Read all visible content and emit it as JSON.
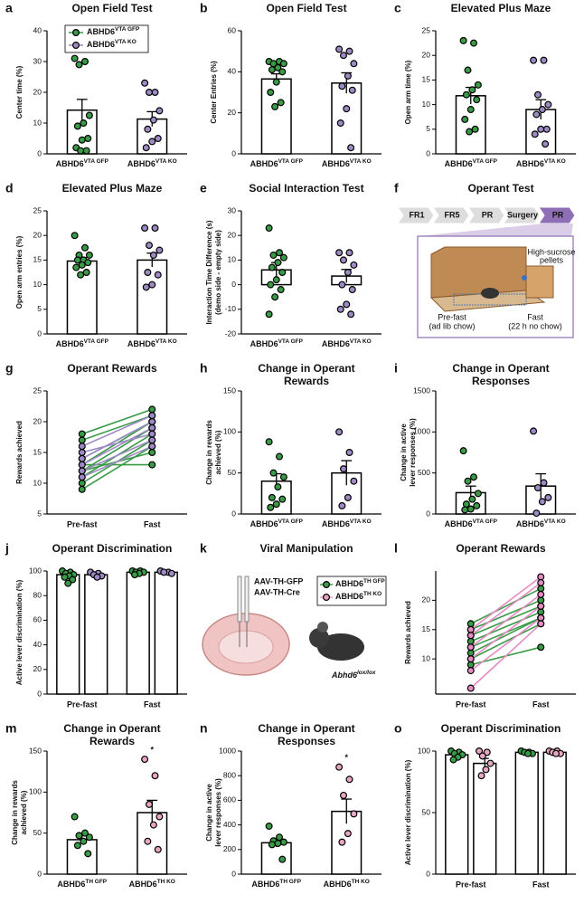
{
  "chart_data": [
    {
      "type": "bar",
      "label": "a",
      "title": "Open Field Test",
      "ylabel": [
        "Center time (%)"
      ],
      "ylim": [
        0,
        40
      ],
      "yticks": [
        0,
        10,
        20,
        30,
        40
      ],
      "categories": [
        {
          "text": "ABHD6",
          "sup": "VTA GFP"
        },
        {
          "text": "ABHD6",
          "sup": "VTA KO"
        }
      ],
      "values": [
        14.2,
        11.3
      ],
      "errors": [
        3.5,
        2.4
      ],
      "colors": [
        "#3a9b47",
        "#9d8ac4"
      ],
      "points": [
        [
          31,
          30,
          29,
          12.5,
          10,
          9,
          5,
          4.5,
          2,
          1,
          1
        ],
        [
          23,
          20,
          20,
          14,
          11,
          8,
          5,
          4,
          2
        ]
      ],
      "legend": [
        {
          "text": "ABHD6",
          "sup": "VTA GFP",
          "color": "#3a9b47"
        },
        {
          "text": "ABHD6",
          "sup": "VTA KO",
          "color": "#9d8ac4"
        }
      ]
    },
    {
      "type": "bar",
      "label": "b",
      "title": "Open Field Test",
      "ylabel": [
        "Center Entries (%)"
      ],
      "ylim": [
        0,
        60
      ],
      "yticks": [
        0,
        20,
        40,
        60
      ],
      "categories": [
        {
          "text": "ABHD6",
          "sup": "VTA GFP"
        },
        {
          "text": "ABHD6",
          "sup": "VTA KO"
        }
      ],
      "values": [
        36.5,
        34.5
      ],
      "errors": [
        2.5,
        5
      ],
      "colors": [
        "#3a9b47",
        "#9d8ac4"
      ],
      "points": [
        [
          45,
          45,
          44,
          44,
          42,
          41,
          40,
          35,
          30,
          25,
          23
        ],
        [
          51,
          50,
          48,
          44,
          38,
          33,
          31,
          22,
          15,
          3
        ]
      ]
    },
    {
      "type": "bar",
      "label": "c",
      "title": "Elevated Plus Maze",
      "ylabel": [
        "Open arm time (%)"
      ],
      "ylim": [
        0,
        25
      ],
      "yticks": [
        0,
        5,
        10,
        15,
        20,
        25
      ],
      "categories": [
        {
          "text": "ABHD6",
          "sup": "VTA GFP"
        },
        {
          "text": "ABHD6",
          "sup": "VTA KO"
        }
      ],
      "values": [
        11.8,
        9
      ],
      "errors": [
        1.7,
        2
      ],
      "colors": [
        "#3a9b47",
        "#9d8ac4"
      ],
      "points": [
        [
          23,
          22.5,
          17,
          14,
          13,
          12,
          11,
          9,
          7,
          5,
          4.5
        ],
        [
          19,
          19,
          12,
          10,
          9,
          8,
          5,
          5,
          4,
          2
        ]
      ]
    },
    {
      "type": "bar",
      "label": "d",
      "title": "Elevated Plus Maze",
      "ylabel": [
        "Open arm entries (%)"
      ],
      "ylim": [
        0,
        25
      ],
      "yticks": [
        0,
        5,
        10,
        15,
        20,
        25
      ],
      "categories": [
        {
          "text": "ABHD6",
          "sup": "VTA GFP"
        },
        {
          "text": "ABHD6",
          "sup": "VTA KO"
        }
      ],
      "values": [
        14.8,
        15
      ],
      "errors": [
        0.7,
        1.4
      ],
      "colors": [
        "#3a9b47",
        "#9d8ac4"
      ],
      "points": [
        [
          20,
          17.5,
          16,
          16,
          15,
          15,
          14.5,
          14,
          13.5,
          12.5,
          12
        ],
        [
          21.5,
          21.5,
          18,
          17,
          16,
          12.5,
          12,
          10,
          9.5
        ]
      ]
    },
    {
      "type": "bar",
      "label": "e",
      "title": "Social Interaction Test",
      "ylabel": [
        "Interaction Time Difference (s)",
        "(demo side - empty side)"
      ],
      "ylim": [
        -20,
        30
      ],
      "yticks": [
        -20,
        -10,
        0,
        10,
        20,
        30
      ],
      "categories": [
        {
          "text": "ABHD6",
          "sup": "VTA GFP"
        },
        {
          "text": "ABHD6",
          "sup": "VTA KO"
        }
      ],
      "values": [
        6,
        3.5
      ],
      "errors": [
        3,
        2.7
      ],
      "colors": [
        "#3a9b47",
        "#9d8ac4"
      ],
      "points": [
        [
          23,
          13,
          12,
          11,
          9,
          7,
          5,
          2,
          0,
          -2,
          -5,
          -12
        ],
        [
          13,
          13,
          10,
          8,
          5,
          0,
          -2,
          -8,
          -10,
          -12
        ]
      ]
    },
    {
      "type": "diagram",
      "label": "f",
      "title": "Operant Test",
      "steps": [
        "FR1",
        "FR5",
        "PR",
        "Surgery",
        "PR"
      ],
      "annotations": [
        "High-sucrose",
        "pellets",
        "Pre-fast",
        "(ad lib chow)",
        "Fast",
        "(22 h no chow)"
      ]
    },
    {
      "type": "paired",
      "label": "g",
      "title": "Operant Rewards",
      "ylabel": [
        "Rewards achieved"
      ],
      "ylim": [
        5,
        25
      ],
      "yticks": [
        5,
        10,
        15,
        20,
        25
      ],
      "categories": [
        "Pre-fast",
        "Fast"
      ],
      "series": [
        {
          "color": "#3a9b47",
          "values": [
            [
              18,
              22
            ],
            [
              17,
              21
            ],
            [
              14,
              20
            ],
            [
              13,
              20
            ],
            [
              12,
              19
            ],
            [
              11,
              18
            ],
            [
              10,
              17
            ],
            [
              9,
              16
            ],
            [
              12,
              15
            ],
            [
              13,
              13
            ]
          ]
        },
        {
          "color": "#9d8ac4",
          "values": [
            [
              16,
              21
            ],
            [
              14,
              20
            ],
            [
              13,
              19
            ],
            [
              12,
              17
            ],
            [
              11,
              16
            ],
            [
              15,
              18
            ]
          ]
        }
      ]
    },
    {
      "type": "bar",
      "label": "h",
      "title": [
        "Change in Operant",
        "Rewards"
      ],
      "ylabel": [
        "Change in rewards",
        "achieved (%)"
      ],
      "ylim": [
        0,
        150
      ],
      "yticks": [
        0,
        50,
        100,
        150
      ],
      "categories": [
        {
          "text": "ABHD6",
          "sup": "VTA GFP"
        },
        {
          "text": "ABHD6",
          "sup": "VTA KO"
        }
      ],
      "values": [
        40,
        50
      ],
      "errors": [
        9,
        15
      ],
      "colors": [
        "#3a9b47",
        "#9d8ac4"
      ],
      "points": [
        [
          88,
          70,
          50,
          45,
          33,
          20,
          18,
          12,
          8
        ],
        [
          100,
          75,
          55,
          40,
          20,
          10
        ]
      ]
    },
    {
      "type": "bar",
      "label": "i",
      "title": [
        "Change in Operant",
        "Responses"
      ],
      "ylabel": [
        "Change in active",
        "lever responses (%)"
      ],
      "ylim": [
        0,
        1500
      ],
      "yticks": [
        0,
        500,
        1000,
        1500
      ],
      "categories": [
        {
          "text": "ABHD6",
          "sup": "VTA GFP"
        },
        {
          "text": "ABHD6",
          "sup": "VTA KO"
        }
      ],
      "values": [
        260,
        340
      ],
      "errors": [
        80,
        150
      ],
      "colors": [
        "#3a9b47",
        "#9d8ac4"
      ],
      "points": [
        [
          770,
          450,
          400,
          250,
          180,
          120,
          100,
          60,
          50
        ],
        [
          1010,
          380,
          320,
          200,
          150,
          10
        ]
      ]
    },
    {
      "type": "grouped_bar",
      "label": "j",
      "title": "Operant Discrimination",
      "ylabel": [
        "Active lever discrimination (%)"
      ],
      "ylim": [
        0,
        100
      ],
      "yticks": [
        0,
        20,
        40,
        60,
        80,
        100
      ],
      "categories": [
        "Pre-fast",
        "Fast"
      ],
      "series": [
        {
          "color": "#3a9b47",
          "values": [
            97,
            99
          ],
          "errors": [
            1.5,
            0.5
          ],
          "points": [
            [
              100,
              99,
              98,
              97,
              96,
              95,
              93,
              90
            ],
            [
              100,
              100,
              99,
              99,
              98,
              97
            ]
          ]
        },
        {
          "color": "#9d8ac4",
          "values": [
            97,
            99
          ],
          "errors": [
            1,
            0.5
          ],
          "points": [
            [
              99,
              98,
              97,
              96,
              95
            ],
            [
              100,
              99,
              99,
              98
            ]
          ]
        }
      ]
    },
    {
      "type": "diagram",
      "label": "k",
      "title": "Viral Manipulation",
      "annotations": [
        "AAV-TH-GFP",
        "AAV-TH-Cre"
      ],
      "annotation_colors": [
        "#2fa84a",
        "#e07ab8"
      ],
      "legend": [
        {
          "text": "ABHD6",
          "sup": "TH GFP",
          "color": "#3a9b47"
        },
        {
          "text": "ABHD6",
          "sup": "TH KO",
          "color": "#e7a6c4"
        }
      ],
      "mouse_label": {
        "text": "Abhd6",
        "sup": "lox/lox"
      }
    },
    {
      "type": "paired",
      "label": "l",
      "title": "Operant Rewards",
      "ylabel": [
        "Rewards achieved"
      ],
      "ylim": [
        4,
        25
      ],
      "yticks": [
        10,
        15,
        20
      ],
      "categories": [
        "Pre-fast",
        "Fast"
      ],
      "series": [
        {
          "color": "#3a9b47",
          "values": [
            [
              16,
              22
            ],
            [
              15,
              20
            ],
            [
              14,
              19
            ],
            [
              13,
              18
            ],
            [
              12,
              17
            ],
            [
              11,
              17
            ],
            [
              10,
              16
            ],
            [
              9,
              12
            ]
          ]
        },
        {
          "color": "#e58bc2",
          "values": [
            [
              15,
              24
            ],
            [
              14,
              23
            ],
            [
              12,
              21
            ],
            [
              10,
              19
            ],
            [
              8,
              17
            ],
            [
              5,
              16
            ]
          ]
        }
      ]
    },
    {
      "type": "bar",
      "label": "m",
      "title": [
        "Change in Operant",
        "Rewards"
      ],
      "ylabel": [
        "Change in rewards",
        "achieved (%)"
      ],
      "ylim": [
        0,
        150
      ],
      "yticks": [
        0,
        50,
        100,
        150
      ],
      "categories": [
        {
          "text": "ABHD6",
          "sup": "TH GFP"
        },
        {
          "text": "ABHD6",
          "sup": "TH KO"
        }
      ],
      "values": [
        42,
        75
      ],
      "errors": [
        5,
        15
      ],
      "colors": [
        "#3a9b47",
        "#e7a6c4"
      ],
      "points": [
        [
          70,
          50,
          47,
          45,
          40,
          35,
          25
        ],
        [
          140,
          120,
          85,
          70,
          60,
          40,
          30
        ]
      ],
      "annotation": "*"
    },
    {
      "type": "bar",
      "label": "n",
      "title": [
        "Change in Operant",
        "Responses"
      ],
      "ylabel": [
        "Change in active",
        "lever responses (%)"
      ],
      "ylim": [
        0,
        1000
      ],
      "yticks": [
        0,
        200,
        400,
        600,
        800,
        1000
      ],
      "categories": [
        {
          "text": "ABHD6",
          "sup": "TH GFP"
        },
        {
          "text": "ABHD6",
          "sup": "TH KO"
        }
      ],
      "values": [
        255,
        510
      ],
      "errors": [
        35,
        100
      ],
      "colors": [
        "#3a9b47",
        "#e7a6c4"
      ],
      "points": [
        [
          390,
          300,
          270,
          260,
          250,
          240,
          120
        ],
        [
          870,
          770,
          640,
          490,
          330,
          260
        ]
      ],
      "annotation": "*"
    },
    {
      "type": "grouped_bar",
      "label": "o",
      "title": "Operant Discrimination",
      "ylabel": [
        "Active lever discrimination (%)"
      ],
      "ylim": [
        0,
        100
      ],
      "yticks": [
        0,
        50,
        100
      ],
      "categories": [
        "Pre-fast",
        "Fast"
      ],
      "series": [
        {
          "color": "#3a9b47",
          "values": [
            97,
            99
          ],
          "errors": [
            1.5,
            0.5
          ],
          "points": [
            [
              100,
              99,
              98,
              97,
              95,
              93
            ],
            [
              100,
              99,
              99,
              98,
              98
            ]
          ]
        },
        {
          "color": "#e7a6c4",
          "values": [
            90,
            99
          ],
          "errors": [
            4,
            0.5
          ],
          "points": [
            [
              100,
              99,
              96,
              90,
              85,
              80
            ],
            [
              100,
              100,
              99,
              98,
              98
            ]
          ]
        }
      ]
    }
  ]
}
